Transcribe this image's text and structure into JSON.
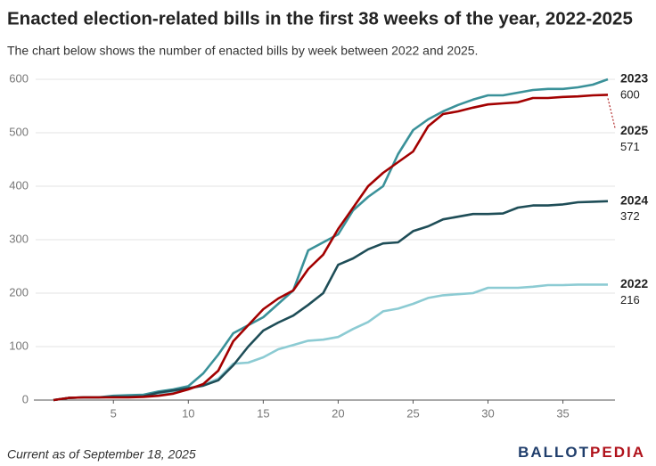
{
  "chart_data": {
    "type": "line",
    "title": "Enacted election-related bills in the first 38 weeks of the year, 2022-2025",
    "subtitle": "The chart below shows the number of enacted bills by week between 2022 and 2025.",
    "footnote": "Current as of September 18, 2025",
    "logo": {
      "first": "BALLOT",
      "second": "PEDIA"
    },
    "x": [
      1,
      2,
      3,
      4,
      5,
      6,
      7,
      8,
      9,
      10,
      11,
      12,
      13,
      14,
      15,
      16,
      17,
      18,
      19,
      20,
      21,
      22,
      23,
      24,
      25,
      26,
      27,
      28,
      29,
      30,
      31,
      32,
      33,
      34,
      35,
      36,
      37,
      38
    ],
    "xlim": [
      1,
      38
    ],
    "xticks": [
      5,
      10,
      15,
      20,
      25,
      30,
      35
    ],
    "ylim": [
      0,
      600
    ],
    "yticks": [
      0,
      100,
      200,
      300,
      400,
      500,
      600
    ],
    "grid": true,
    "series": [
      {
        "name": "2022",
        "color": "#8ccbd3",
        "values": [
          0,
          4,
          5,
          5,
          6,
          6,
          7,
          10,
          15,
          22,
          28,
          40,
          68,
          70,
          80,
          95,
          103,
          111,
          113,
          118,
          133,
          146,
          166,
          171,
          180,
          191,
          196,
          198,
          200,
          210,
          210,
          210,
          212,
          215,
          215,
          216,
          216,
          216
        ]
      },
      {
        "name": "2023",
        "color": "#3a9199",
        "values": [
          0,
          4,
          5,
          5,
          8,
          9,
          10,
          16,
          20,
          26,
          50,
          85,
          125,
          140,
          155,
          180,
          205,
          280,
          295,
          310,
          355,
          380,
          400,
          460,
          505,
          525,
          540,
          552,
          562,
          570,
          570,
          575,
          580,
          582,
          582,
          585,
          590,
          600
        ]
      },
      {
        "name": "2024",
        "color": "#1e4d57",
        "values": [
          0,
          4,
          5,
          5,
          6,
          6,
          7,
          14,
          18,
          22,
          27,
          37,
          65,
          100,
          130,
          145,
          158,
          178,
          200,
          253,
          265,
          282,
          293,
          295,
          316,
          325,
          338,
          343,
          348,
          348,
          349,
          360,
          364,
          364,
          366,
          370,
          371,
          372
        ]
      },
      {
        "name": "2025",
        "color": "#a30000",
        "values": [
          0,
          4,
          5,
          5,
          5,
          5,
          6,
          8,
          12,
          20,
          30,
          55,
          110,
          140,
          170,
          190,
          205,
          245,
          272,
          320,
          360,
          400,
          425,
          445,
          465,
          512,
          535,
          540,
          547,
          553,
          555,
          557,
          565,
          565,
          567,
          568,
          570,
          571
        ]
      }
    ]
  }
}
